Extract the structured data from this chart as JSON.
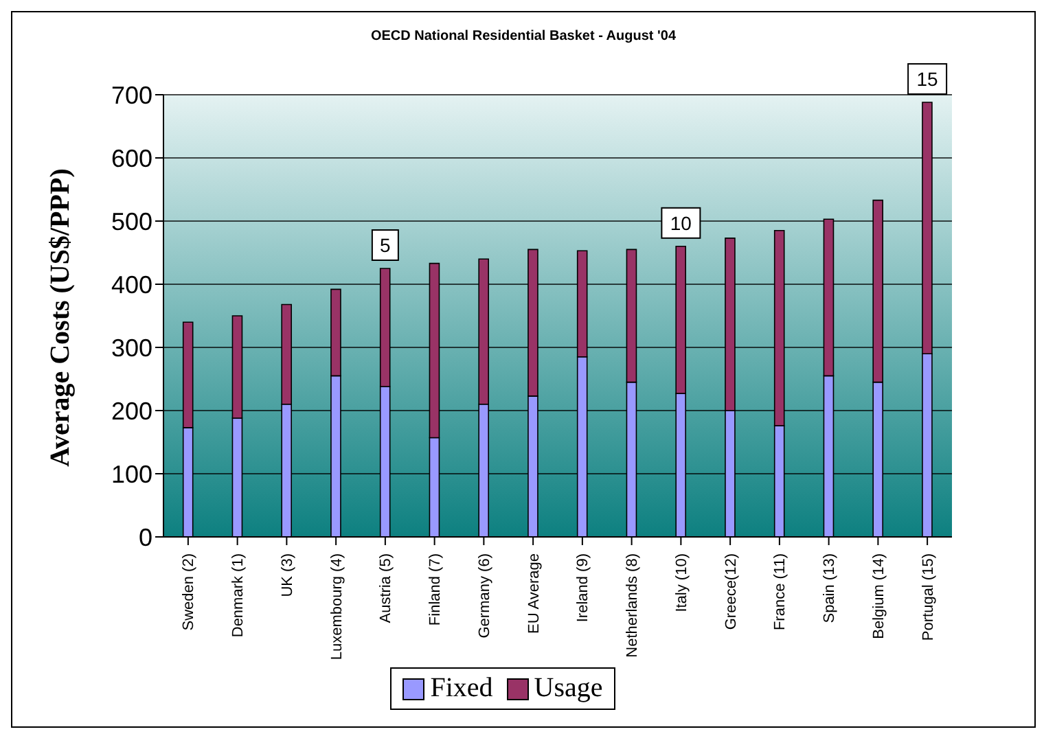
{
  "chart_data": {
    "type": "bar",
    "title": "OECD National Residential Basket - August '04",
    "ylabel": "Average Costs (US$/PPP)",
    "categories": [
      "Sweden (2)",
      "Denmark (1)",
      "UK (3)",
      "Luxembourg (4)",
      "Austria (5)",
      "Finland (7)",
      "Germany (6)",
      "EU Average",
      "Ireland (9)",
      "Netherlands (8)",
      "Italy (10)",
      "Greece(12)",
      "France (11)",
      "Spain (13)",
      "Belgium (14)",
      "Portugal (15)"
    ],
    "series": [
      {
        "name": "Fixed",
        "color": "#9999ff",
        "values": [
          173,
          188,
          210,
          255,
          238,
          157,
          210,
          223,
          285,
          245,
          227,
          200,
          176,
          255,
          245,
          290
        ]
      },
      {
        "name": "Usage",
        "color": "#993366",
        "values": [
          167,
          162,
          158,
          137,
          187,
          276,
          230,
          232,
          168,
          210,
          233,
          273,
          309,
          248,
          288,
          398
        ]
      }
    ],
    "stacked": true,
    "ylim": [
      0,
      700
    ],
    "yticks": [
      0,
      100,
      200,
      300,
      400,
      500,
      600,
      700
    ],
    "grid": "y",
    "legend": "bottom",
    "annotations": [
      {
        "text": "5",
        "x": "Austria (5)",
        "y": 425
      },
      {
        "text": "10",
        "x": "Italy (10)",
        "y": 460
      },
      {
        "text": "15",
        "x": "Portugal (15)",
        "y": 688
      }
    ]
  }
}
